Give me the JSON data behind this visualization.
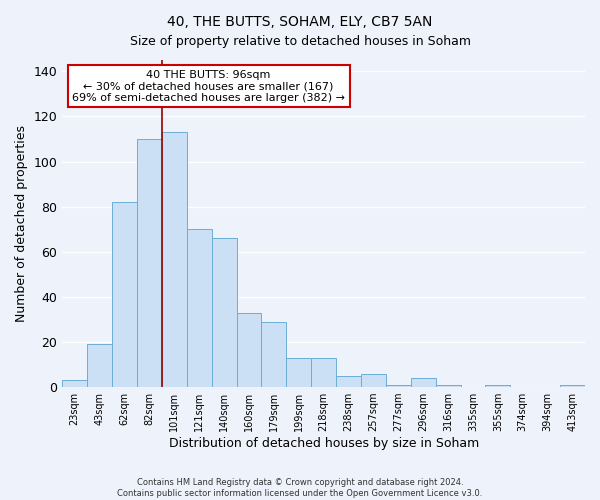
{
  "title": "40, THE BUTTS, SOHAM, ELY, CB7 5AN",
  "subtitle": "Size of property relative to detached houses in Soham",
  "xlabel": "Distribution of detached houses by size in Soham",
  "ylabel": "Number of detached properties",
  "bar_labels": [
    "23sqm",
    "43sqm",
    "62sqm",
    "82sqm",
    "101sqm",
    "121sqm",
    "140sqm",
    "160sqm",
    "179sqm",
    "199sqm",
    "218sqm",
    "238sqm",
    "257sqm",
    "277sqm",
    "296sqm",
    "316sqm",
    "335sqm",
    "355sqm",
    "374sqm",
    "394sqm",
    "413sqm"
  ],
  "bar_values": [
    3,
    19,
    82,
    110,
    113,
    70,
    66,
    33,
    29,
    13,
    13,
    5,
    6,
    1,
    4,
    1,
    0,
    1,
    0,
    0,
    1
  ],
  "bar_color": "#cce0f5",
  "bar_edge_color": "#6aaed6",
  "ylim": [
    0,
    145
  ],
  "yticks": [
    0,
    20,
    40,
    60,
    80,
    100,
    120,
    140
  ],
  "vline_index": 4,
  "vline_color": "#990000",
  "annotation_title": "40 THE BUTTS: 96sqm",
  "annotation_line1": "← 30% of detached houses are smaller (167)",
  "annotation_line2": "69% of semi-detached houses are larger (382) →",
  "annotation_box_facecolor": "#ffffff",
  "annotation_box_edgecolor": "#cc0000",
  "footer1": "Contains HM Land Registry data © Crown copyright and database right 2024.",
  "footer2": "Contains public sector information licensed under the Open Government Licence v3.0.",
  "background_color": "#eef2fa",
  "grid_color": "#d0d8e8",
  "fig_width": 6.0,
  "fig_height": 5.0,
  "dpi": 100
}
